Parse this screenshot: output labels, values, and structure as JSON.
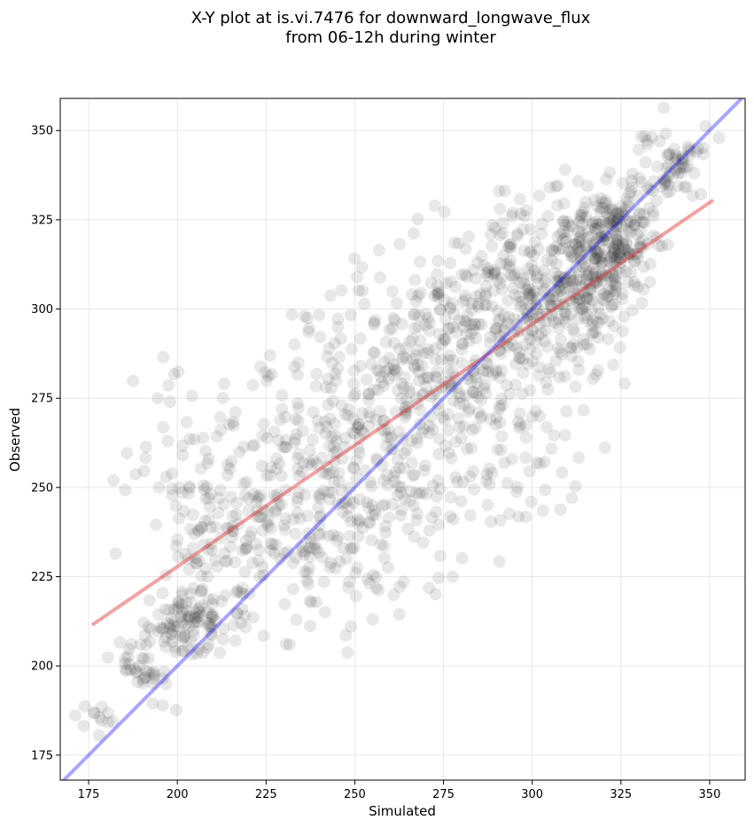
{
  "chart_data": {
    "type": "scatter",
    "title": {
      "line1": "X-Y plot at is.vi.7476 for downward_longwave_flux",
      "line2": "from 06-12h during winter"
    },
    "xlabel": "Simulated",
    "ylabel": "Observed",
    "xlim": [
      167,
      360
    ],
    "ylim": [
      168,
      359
    ],
    "xticks": [
      175,
      200,
      225,
      250,
      275,
      300,
      325,
      350
    ],
    "yticks": [
      175,
      200,
      225,
      250,
      275,
      300,
      325,
      350
    ],
    "grid": true,
    "point_color": "#000000",
    "point_opacity": 0.09,
    "identity_line": {
      "x": [
        167,
        360
      ],
      "y": [
        167,
        360
      ],
      "color": "#0000ff"
    },
    "fit_line": {
      "x": [
        176,
        351
      ],
      "y": [
        211.5,
        330.5
      ],
      "color": "#e03030"
    },
    "cluster_model": [
      {
        "cx": 178,
        "cy": 186,
        "sx": 3,
        "sy": 4,
        "n": 12
      },
      {
        "cx": 190,
        "cy": 200,
        "sx": 4,
        "sy": 6,
        "n": 40
      },
      {
        "cx": 203,
        "cy": 212,
        "sx": 5,
        "sy": 5,
        "n": 90
      },
      {
        "cx": 210,
        "cy": 230,
        "sx": 8,
        "sy": 12,
        "n": 60
      },
      {
        "cx": 195,
        "cy": 260,
        "sx": 8,
        "sy": 15,
        "n": 35
      },
      {
        "cx": 218,
        "cy": 240,
        "sx": 10,
        "sy": 18,
        "n": 80
      },
      {
        "cx": 230,
        "cy": 255,
        "sx": 10,
        "sy": 18,
        "n": 90
      },
      {
        "cx": 245,
        "cy": 240,
        "sx": 10,
        "sy": 14,
        "n": 100
      },
      {
        "cx": 250,
        "cy": 270,
        "sx": 12,
        "sy": 20,
        "n": 120
      },
      {
        "cx": 265,
        "cy": 260,
        "sx": 12,
        "sy": 18,
        "n": 120
      },
      {
        "cx": 270,
        "cy": 290,
        "sx": 12,
        "sy": 15,
        "n": 120
      },
      {
        "cx": 285,
        "cy": 295,
        "sx": 12,
        "sy": 15,
        "n": 130
      },
      {
        "cx": 290,
        "cy": 260,
        "sx": 10,
        "sy": 15,
        "n": 70
      },
      {
        "cx": 300,
        "cy": 305,
        "sx": 10,
        "sy": 12,
        "n": 160
      },
      {
        "cx": 313,
        "cy": 300,
        "sx": 8,
        "sy": 14,
        "n": 150
      },
      {
        "cx": 320,
        "cy": 318,
        "sx": 6,
        "sy": 7,
        "n": 140
      },
      {
        "cx": 325,
        "cy": 320,
        "sx": 5,
        "sy": 8,
        "n": 80
      },
      {
        "cx": 340,
        "cy": 340,
        "sx": 6,
        "sy": 6,
        "n": 70
      }
    ]
  }
}
